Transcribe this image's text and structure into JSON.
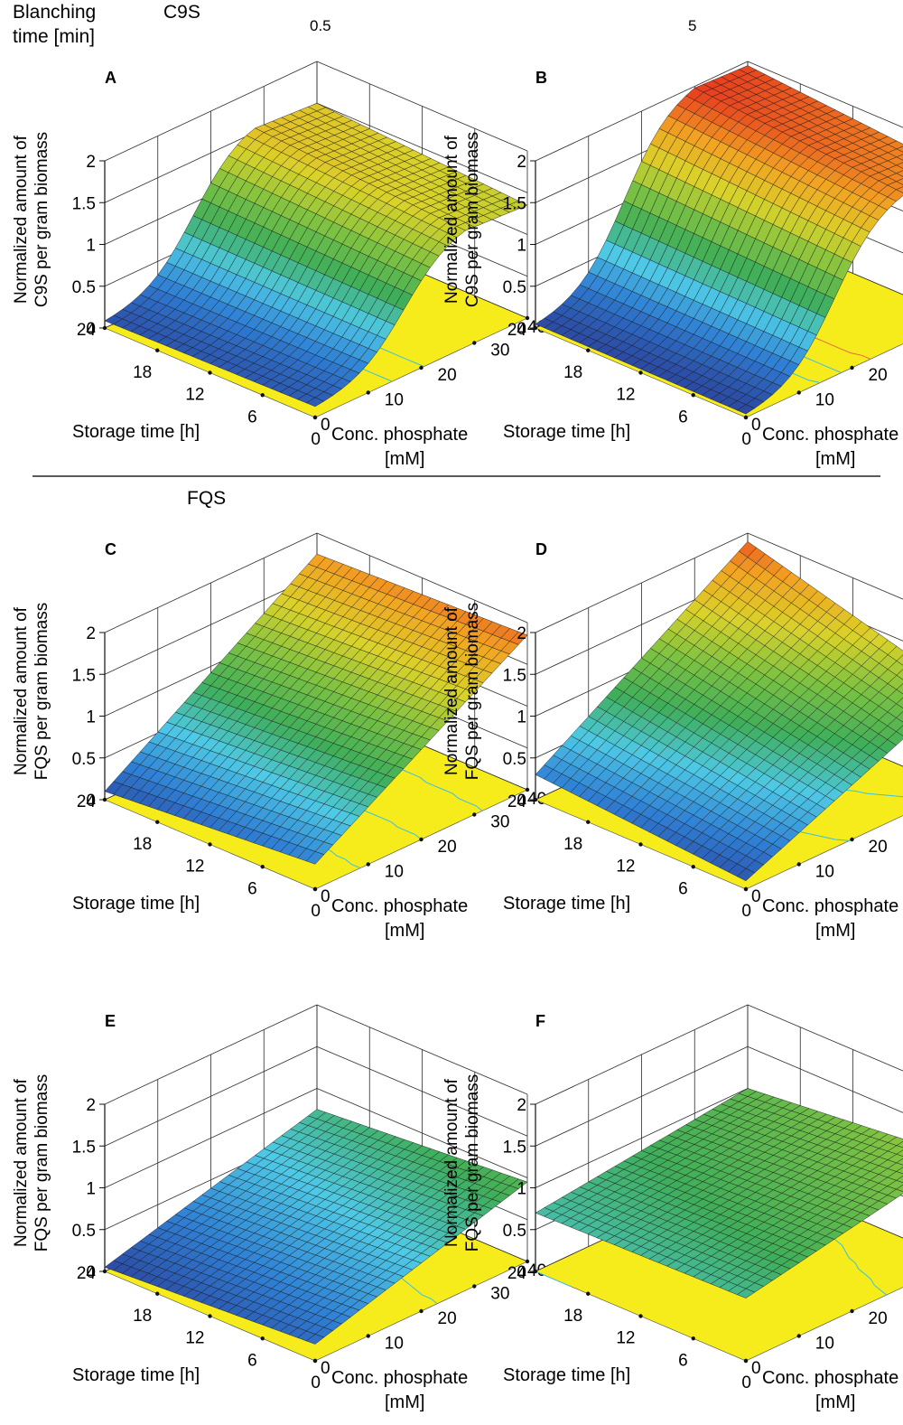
{
  "header": {
    "blanching_label_line1": "Blanching",
    "blanching_label_line2": "time [min]",
    "section_c9s": "C9S",
    "section_fqs": "FQS",
    "col_short": "0.5",
    "col_long": "5"
  },
  "colors": {
    "floor": "#f7ec1b",
    "grid": "#2b2b2b",
    "contour": "#35c0e6",
    "contour_warm": "#e66a4a",
    "colormap": [
      "#2b3f99",
      "#2f7fd4",
      "#4ec9e6",
      "#3fae5a",
      "#7cc242",
      "#d9d22a",
      "#f2a422",
      "#e6331f"
    ]
  },
  "axis_text": {
    "x_label": "Storage time [h]",
    "y_label_line1": "Conc. phosphate",
    "y_label_line2": "[mM]",
    "x_ticks": [
      "24",
      "18",
      "12",
      "6",
      "0"
    ],
    "y_ticks": [
      "0",
      "10",
      "20",
      "30",
      "40"
    ],
    "z_ticks": [
      "0",
      "0.5",
      "1",
      "1.5",
      "2"
    ]
  },
  "chart_data": [
    {
      "panel": "A",
      "type": "surface",
      "compound": "C9S",
      "blanching_time_min": 0.5,
      "zlabel_line1": "Normalized amount of",
      "zlabel_line2": "C9S per gram biomass",
      "x_var": "Storage time [h]",
      "x_range": [
        0,
        24
      ],
      "y_var": "Conc. phosphate [mM]",
      "y_range": [
        0,
        40
      ],
      "z_range": [
        0,
        2
      ],
      "corner_z": {
        "x24_p0": 0.05,
        "x24_p40": 1.5,
        "x0_p0": 0.1,
        "x0_p40": 1.35
      },
      "shape": "sigmoid",
      "peak": {
        "z": 1.55,
        "phosphate_mM": 28
      }
    },
    {
      "panel": "B",
      "type": "surface",
      "compound": "C9S",
      "blanching_time_min": 5,
      "zlabel_line1": "Normalized amount of",
      "zlabel_line2": "C9S per gram biomass",
      "x_var": "Storage time [h]",
      "x_range": [
        0,
        24
      ],
      "y_var": "Conc. phosphate [mM]",
      "y_range": [
        0,
        40
      ],
      "z_range": [
        0,
        2
      ],
      "corner_z": {
        "x24_p0": 0.0,
        "x24_p40": 1.95,
        "x0_p0": 0.0,
        "x0_p40": 1.75
      },
      "shape": "sigmoid",
      "peak": {
        "z": 1.98,
        "phosphate_mM": 30
      }
    },
    {
      "panel": "C",
      "type": "surface",
      "compound": "FQS",
      "blanching_time_min": 0.5,
      "zlabel_line1": "Normalized amount of",
      "zlabel_line2": "FQS per gram biomass",
      "x_var": "Storage time [h]",
      "x_range": [
        0,
        24
      ],
      "y_var": "Conc. phosphate [mM]",
      "y_range": [
        0,
        40
      ],
      "z_range": [
        0,
        2
      ],
      "corner_z": {
        "x24_p0": 0.1,
        "x24_p40": 1.75,
        "x0_p0": 0.3,
        "x0_p40": 1.85
      },
      "shape": "plane"
    },
    {
      "panel": "D",
      "type": "surface",
      "compound": "FQS",
      "blanching_time_min": 5,
      "zlabel_line1": "Normalized amount of",
      "zlabel_line2": "FQS per gram biomass",
      "x_var": "Storage time [h]",
      "x_range": [
        0,
        24
      ],
      "y_var": "Conc. phosphate [mM]",
      "y_range": [
        0,
        40
      ],
      "z_range": [
        0,
        2
      ],
      "corner_z": {
        "x24_p0": 0.3,
        "x24_p40": 1.9,
        "x0_p0": 0.1,
        "x0_p40": 1.2
      },
      "shape": "plane"
    },
    {
      "panel": "E",
      "type": "surface",
      "compound": "FQS",
      "blanching_time_min": 0.5,
      "zlabel_line1": "Normalized amount of",
      "zlabel_line2": "FQS per gram biomass",
      "x_var": "Storage time [h]",
      "x_range": [
        0,
        24
      ],
      "y_var": "Conc. phosphate [mM]",
      "y_range": [
        0,
        40
      ],
      "z_range": [
        0,
        2
      ],
      "corner_z": {
        "x24_p0": 0.05,
        "x24_p40": 0.75,
        "x0_p0": 0.2,
        "x0_p40": 0.95
      },
      "shape": "plane"
    },
    {
      "panel": "F",
      "type": "surface",
      "compound": "FQS",
      "blanching_time_min": 5,
      "zlabel_line1": "Normalized amount of",
      "zlabel_line2": "FQS per gram biomass",
      "x_var": "Storage time [h]",
      "x_range": [
        0,
        24
      ],
      "y_var": "Conc. phosphate [mM]",
      "y_range": [
        0,
        40
      ],
      "z_range": [
        0,
        2
      ],
      "corner_z": {
        "x24_p0": 0.7,
        "x24_p40": 1.0,
        "x0_p0": 0.75,
        "x0_p40": 1.25
      },
      "shape": "plane"
    }
  ]
}
